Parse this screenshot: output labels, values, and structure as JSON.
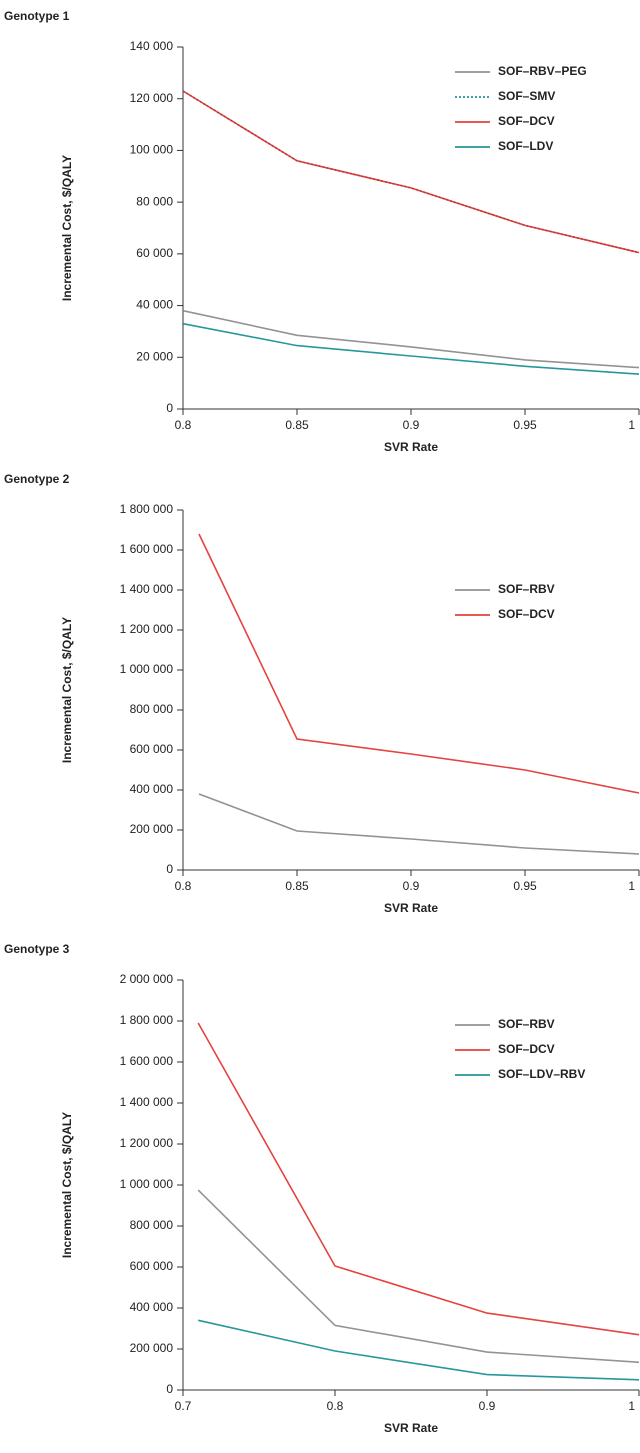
{
  "chart_data": [
    {
      "type": "line",
      "title": "Genotype 1",
      "xlabel": "SVR Rate",
      "ylabel": "Incremental Cost, $/QALY",
      "xlim": [
        0.8,
        1
      ],
      "xticks": [
        0.8,
        0.85,
        0.9,
        0.95,
        1
      ],
      "ylim": [
        0,
        140000
      ],
      "yticks": [
        {
          "value": 0,
          "label": "0"
        },
        {
          "value": 20000,
          "label": "20 000"
        },
        {
          "value": 40000,
          "label": "40 000"
        },
        {
          "value": 60000,
          "label": "60 000"
        },
        {
          "value": 80000,
          "label": "80 000"
        },
        {
          "value": 100000,
          "label": "100 000"
        },
        {
          "value": 120000,
          "label": "120 000"
        },
        {
          "value": 140000,
          "label": "140 000"
        }
      ],
      "series": [
        {
          "name": "SOF–RBV–PEG",
          "color": "#808080",
          "style": "solid",
          "x": [
            0.8,
            0.85,
            0.9,
            0.95,
            1
          ],
          "values": [
            38000,
            28500,
            24000,
            19000,
            16000
          ]
        },
        {
          "name": "SOF–SMV",
          "color": "#00868a",
          "style": "dotted",
          "x": [
            0.8,
            0.85,
            0.9,
            0.95,
            1
          ],
          "values": [
            123000,
            96000,
            85500,
            71000,
            60500
          ]
        },
        {
          "name": "SOF–DCV",
          "color": "#e0211f",
          "style": "solid",
          "x": [
            0.8,
            0.85,
            0.9,
            0.95,
            1
          ],
          "values": [
            123000,
            96000,
            85500,
            71000,
            60500
          ]
        },
        {
          "name": "SOF–LDV",
          "color": "#00868a",
          "style": "solid",
          "x": [
            0.8,
            0.85,
            0.9,
            0.95,
            1
          ],
          "values": [
            33000,
            24500,
            20500,
            16500,
            13500
          ]
        }
      ]
    },
    {
      "type": "line",
      "title": "Genotype 2",
      "xlabel": "SVR Rate",
      "ylabel": "Incremental Cost, $/QALY",
      "xlim": [
        0.8,
        1
      ],
      "xticks": [
        0.8,
        0.85,
        0.9,
        0.95,
        1
      ],
      "ylim": [
        0,
        1800000
      ],
      "yticks": [
        {
          "value": 0,
          "label": "0"
        },
        {
          "value": 200000,
          "label": "200 000"
        },
        {
          "value": 400000,
          "label": "400 000"
        },
        {
          "value": 600000,
          "label": "600 000"
        },
        {
          "value": 800000,
          "label": "800 000"
        },
        {
          "value": 1000000,
          "label": "1 000 000"
        },
        {
          "value": 1200000,
          "label": "1 200 000"
        },
        {
          "value": 1400000,
          "label": "1 400 000"
        },
        {
          "value": 1600000,
          "label": "1 600 000"
        },
        {
          "value": 1800000,
          "label": "1 800 000"
        }
      ],
      "series": [
        {
          "name": "SOF–RBV",
          "color": "#808080",
          "style": "solid",
          "x": [
            0.807,
            0.85,
            0.9,
            0.95,
            1
          ],
          "values": [
            380000,
            195000,
            155000,
            110000,
            80000
          ]
        },
        {
          "name": "SOF–DCV",
          "color": "#e0211f",
          "style": "solid",
          "x": [
            0.807,
            0.85,
            0.9,
            0.95,
            1
          ],
          "values": [
            1680000,
            655000,
            580000,
            500000,
            385000
          ]
        }
      ]
    },
    {
      "type": "line",
      "title": "Genotype 3",
      "xlabel": "SVR Rate",
      "ylabel": "Incremental Cost, $/QALY",
      "xlim": [
        0.7,
        1
      ],
      "xticks": [
        0.7,
        0.8,
        0.9,
        1
      ],
      "ylim": [
        0,
        2000000
      ],
      "yticks": [
        {
          "value": 0,
          "label": "0"
        },
        {
          "value": 200000,
          "label": "200 000"
        },
        {
          "value": 400000,
          "label": "400 000"
        },
        {
          "value": 600000,
          "label": "600 000"
        },
        {
          "value": 800000,
          "label": "800 000"
        },
        {
          "value": 1000000,
          "label": "1 000 000"
        },
        {
          "value": 1200000,
          "label": "1 200 000"
        },
        {
          "value": 1400000,
          "label": "1 400 000"
        },
        {
          "value": 1600000,
          "label": "1 600 000"
        },
        {
          "value": 1800000,
          "label": "1 800 000"
        },
        {
          "value": 2000000,
          "label": "2 000 000"
        }
      ],
      "series": [
        {
          "name": "SOF–RBV",
          "color": "#808080",
          "style": "solid",
          "x": [
            0.71,
            0.8,
            0.9,
            1
          ],
          "values": [
            975000,
            315000,
            185000,
            135000
          ]
        },
        {
          "name": "SOF–DCV",
          "color": "#e0211f",
          "style": "solid",
          "x": [
            0.71,
            0.8,
            0.9,
            1
          ],
          "values": [
            1790000,
            605000,
            375000,
            270000
          ]
        },
        {
          "name": "SOF–LDV–RBV",
          "color": "#00868a",
          "style": "solid",
          "x": [
            0.71,
            0.8,
            0.9,
            1
          ],
          "values": [
            340000,
            190000,
            75000,
            50000
          ]
        }
      ]
    }
  ]
}
